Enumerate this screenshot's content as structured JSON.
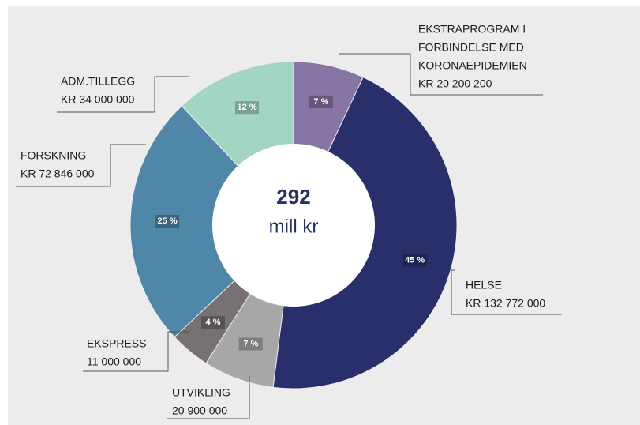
{
  "chart_data": {
    "type": "pie",
    "donut": true,
    "categories": [
      [
        "EKSTRAPROGRAM I",
        "FORBINDELSE MED",
        "KORONAEPIDEMIEN"
      ],
      [
        "HELSE"
      ],
      [
        "UTVIKLING"
      ],
      [
        "EKSPRESS"
      ],
      [
        "FORSKNING"
      ],
      [
        "ADM.TILLEGG"
      ]
    ],
    "amount_labels": [
      "KR 20 200 200",
      "KR 132 772 000",
      "20 900 000",
      "11 000 000",
      "KR 72 846 000",
      "KR 34 000 000"
    ],
    "values": [
      7,
      45,
      7,
      4,
      25,
      12
    ],
    "value_labels": [
      "7 %",
      "45 %",
      "7 %",
      "4 %",
      "25 %",
      "12 %"
    ],
    "colors": [
      "#8775a3",
      "#282f6b",
      "#a7a7a7",
      "#777171",
      "#4f87a9",
      "#a3d5c4"
    ],
    "total": 292,
    "total_unit": "mill kr"
  }
}
